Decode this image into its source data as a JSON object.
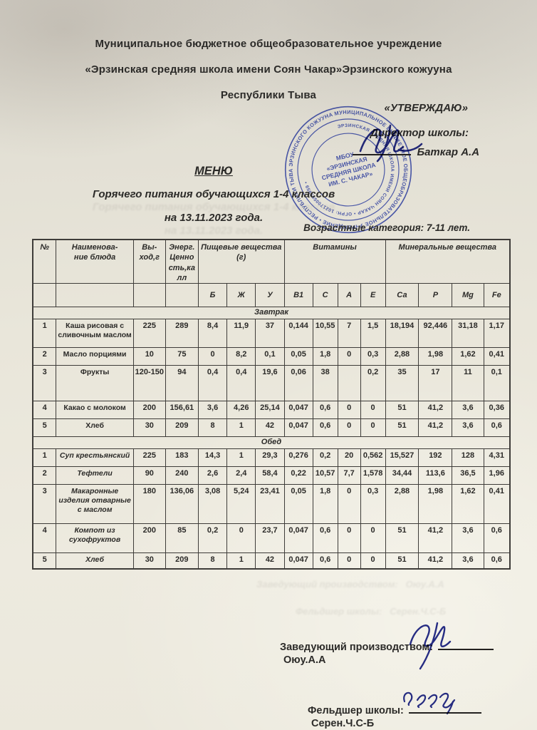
{
  "page": {
    "org_line1": "Муниципальное бюджетное общеобразовательное учреждение",
    "org_line2": "«Эрзинская средняя школа  имени Соян Чакар»Эрзинского кожууна",
    "org_line3": "Республики Тыва",
    "approve": "«УТВЕРЖДАЮ»",
    "director_label": "Директор школы:",
    "director_name": "Баткар А.А",
    "menu_title": "МЕНЮ",
    "menu_subtitle1": "Горячего питания обучающихся 1-4 классов",
    "menu_subtitle2": "на 13.11.2023 года.",
    "age_category": "Возрастные категория: 7-11 лет."
  },
  "stamp": {
    "ring_outer": "МУНИЦИПАЛЬНОЕ БЮДЖЕТНОЕ ОБЩЕОБРАЗОВАТЕЛЬНОЕ УЧРЕЖДЕНИЕ • РЕСПУБЛИКИ ТЫВА ЭРЗИНСКОГО КОЖУУНА •",
    "ring_inner": "ЭРЗИНСКАЯ СРЕДНЯЯ ШКОЛА ИМЕНИ СОЯН ЧАКАР • ОГРН: 1021700595959 •",
    "center_line1": "МБОУ",
    "center_line2": "«ЭРЗИНСКАЯ",
    "center_line3": "СРЕДНЯЯ ШКОЛА",
    "center_line4": "ИМ. С. ЧАКАР»",
    "color": "#3f51c0"
  },
  "table": {
    "head": {
      "num": "№",
      "dish": "Наименова-\nние блюда",
      "yield": "Вы-\nход,г",
      "energy": "Энерг.\nЦенно\nсть,ка\nлл",
      "group_food": "Пищевые вещества\n(г)",
      "group_vitamins": "Витамины",
      "group_minerals": "Минеральные вещества",
      "sub": [
        "Б",
        "Ж",
        "У",
        "В1",
        "С",
        "А",
        "Е",
        "Са",
        "Р",
        "Mg",
        "Fe"
      ]
    },
    "sections": [
      {
        "label": "Завтрак",
        "rows": [
          [
            "1",
            "Каша рисовая с сливочным маслом",
            "225",
            "289",
            "8,4",
            "11,9",
            "37",
            "0,144",
            "10,55",
            "7",
            "1,5",
            "18,194",
            "92,446",
            "31,18",
            "1,17"
          ],
          [
            "2",
            "Масло порциями",
            "10",
            "75",
            "0",
            "8,2",
            "0,1",
            "0,05",
            "1,8",
            "0",
            "0,3",
            "2,88",
            "1,98",
            "1,62",
            "0,41"
          ],
          [
            "3",
            "Фрукты",
            "120-150",
            "94",
            "0,4",
            "0,4",
            "19,6",
            "0,06",
            "38",
            "",
            "0,2",
            "35",
            "17",
            "11",
            "0,1"
          ],
          [
            "4",
            "Какао с молоком",
            "200",
            "156,61",
            "3,6",
            "4,26",
            "25,14",
            "0,047",
            "0,6",
            "0",
            "0",
            "51",
            "41,2",
            "3,6",
            "0,36"
          ],
          [
            "5",
            "Хлеб",
            "30",
            "209",
            "8",
            "1",
            "42",
            "0,047",
            "0,6",
            "0",
            "0",
            "51",
            "41,2",
            "3,6",
            "0,6"
          ]
        ]
      },
      {
        "label": "Обед",
        "rows": [
          [
            "1",
            "Суп крестьянский",
            "225",
            "183",
            "14,3",
            "1",
            "29,3",
            "0,276",
            "0,2",
            "20",
            "0,562",
            "15,527",
            "192",
            "128",
            "4,31"
          ],
          [
            "2",
            "Тефтели",
            "90",
            "240",
            "2,6",
            "2,4",
            "58,4",
            "0,22",
            "10,57",
            "7,7",
            "1,578",
            "34,44",
            "113,6",
            "36,5",
            "1,96"
          ],
          [
            "3",
            "Макаронные изделия отварные с маслом",
            "180",
            "136,06",
            "3,08",
            "5,24",
            "23,41",
            "0,05",
            "1,8",
            "0",
            "0,3",
            "2,88",
            "1,98",
            "1,62",
            "0,41"
          ],
          [
            "4",
            "Компот из сухофруктов",
            "200",
            "85",
            "0,2",
            "0",
            "23,7",
            "0,047",
            "0,6",
            "0",
            "0",
            "51",
            "41,2",
            "3,6",
            "0,6"
          ],
          [
            "5",
            "Хлеб",
            "30",
            "209",
            "8",
            "1",
            "42",
            "0,047",
            "0,6",
            "0",
            "0",
            "51",
            "41,2",
            "3,6",
            "0,6"
          ]
        ]
      }
    ]
  },
  "signatures": {
    "production_label": "Заведующий производством:",
    "production_name": "Оюу.А.А",
    "feldsher_label": "Фельдшер школы:",
    "feldsher_name": "Серен.Ч.С-Б"
  },
  "ink_color": "#2a2f8e"
}
